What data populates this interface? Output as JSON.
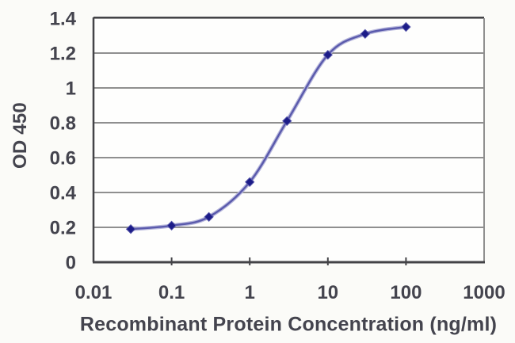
{
  "figure": {
    "background": "#fbfbf8"
  },
  "chart_data": {
    "type": "line",
    "xlabel": "Recombinant Protein Concentration (ng/ml)",
    "ylabel": "OD 450",
    "x_scale": "log",
    "xlim": [
      0.01,
      1000
    ],
    "ylim": [
      0,
      1.4
    ],
    "x_ticks": [
      0.01,
      0.1,
      1,
      10,
      100,
      1000
    ],
    "x_tick_labels": [
      "0.01",
      "0.1",
      "1",
      "10",
      "100",
      "1000"
    ],
    "y_ticks": [
      0,
      0.2,
      0.4,
      0.6,
      0.8,
      1,
      1.2,
      1.4
    ],
    "y_tick_labels": [
      "0",
      "0.2",
      "0.4",
      "0.6",
      "0.8",
      "1",
      "1.2",
      "1.4"
    ],
    "grid": "horizontal",
    "legend": "none",
    "series": [
      {
        "name": "OD 450",
        "x": [
          0.03,
          0.1,
          0.3,
          1,
          3,
          10,
          30,
          100
        ],
        "y": [
          0.19,
          0.21,
          0.26,
          0.46,
          0.81,
          1.19,
          1.31,
          1.35
        ],
        "marker": "diamond",
        "line_style": "smooth"
      }
    ],
    "colors": {
      "line": "#5a5aac",
      "line_halo": "#b7b7dc",
      "marker": "#1c1c88",
      "grid": "#8f8f8f",
      "axis_dark": "#434347",
      "axis_light": "#8f8f8f",
      "text": "#44444e",
      "plot_bg": "#fefefd"
    }
  }
}
